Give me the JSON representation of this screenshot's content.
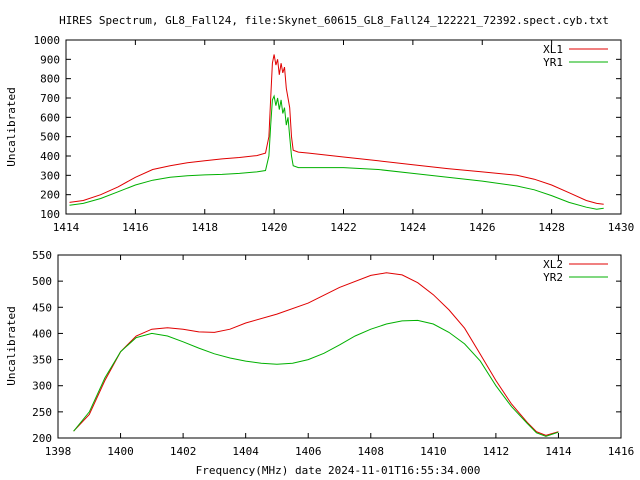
{
  "title": "HIRES Spectrum, GL8_Fall24, file:Skynet_60615_GL8_Fall24_122221_72392.spect.cyb.txt",
  "xlabel": "Frequency(MHz) date 2024-11-01T16:55:34.000",
  "colors": {
    "red": "#e00000",
    "green": "#00b000",
    "axis": "#000000"
  },
  "chart_data": [
    {
      "type": "line",
      "ylabel": "Uncalibrated",
      "xlim": [
        1414,
        1430
      ],
      "ylim": [
        100,
        1000
      ],
      "xticks": [
        1414,
        1416,
        1418,
        1420,
        1422,
        1424,
        1426,
        1428,
        1430
      ],
      "yticks": [
        100,
        200,
        300,
        400,
        500,
        600,
        700,
        800,
        900,
        1000
      ],
      "legend": "top-right",
      "series": [
        {
          "name": "XL1",
          "color": "#e00000",
          "points": [
            [
              1414.1,
              160
            ],
            [
              1414.5,
              170
            ],
            [
              1415,
              200
            ],
            [
              1415.5,
              240
            ],
            [
              1416,
              290
            ],
            [
              1416.5,
              330
            ],
            [
              1417,
              350
            ],
            [
              1417.5,
              365
            ],
            [
              1418,
              375
            ],
            [
              1418.5,
              385
            ],
            [
              1419,
              392
            ],
            [
              1419.5,
              402
            ],
            [
              1419.75,
              415
            ],
            [
              1419.85,
              500
            ],
            [
              1419.9,
              700
            ],
            [
              1419.95,
              880
            ],
            [
              1420.0,
              925
            ],
            [
              1420.05,
              870
            ],
            [
              1420.1,
              900
            ],
            [
              1420.15,
              820
            ],
            [
              1420.2,
              880
            ],
            [
              1420.25,
              830
            ],
            [
              1420.3,
              860
            ],
            [
              1420.35,
              750
            ],
            [
              1420.4,
              700
            ],
            [
              1420.45,
              650
            ],
            [
              1420.5,
              500
            ],
            [
              1420.55,
              430
            ],
            [
              1420.7,
              420
            ],
            [
              1421,
              415
            ],
            [
              1422,
              395
            ],
            [
              1423,
              375
            ],
            [
              1424,
              355
            ],
            [
              1425,
              335
            ],
            [
              1426,
              318
            ],
            [
              1427,
              300
            ],
            [
              1427.5,
              280
            ],
            [
              1428,
              250
            ],
            [
              1428.5,
              210
            ],
            [
              1429,
              170
            ],
            [
              1429.3,
              155
            ],
            [
              1429.5,
              150
            ]
          ]
        },
        {
          "name": "YR1",
          "color": "#00b000",
          "points": [
            [
              1414.1,
              145
            ],
            [
              1414.5,
              155
            ],
            [
              1415,
              180
            ],
            [
              1415.5,
              215
            ],
            [
              1416,
              250
            ],
            [
              1416.5,
              275
            ],
            [
              1417,
              290
            ],
            [
              1417.5,
              298
            ],
            [
              1418,
              302
            ],
            [
              1418.5,
              305
            ],
            [
              1419,
              310
            ],
            [
              1419.5,
              318
            ],
            [
              1419.75,
              325
            ],
            [
              1419.85,
              400
            ],
            [
              1419.9,
              560
            ],
            [
              1419.95,
              690
            ],
            [
              1420.0,
              710
            ],
            [
              1420.05,
              660
            ],
            [
              1420.1,
              700
            ],
            [
              1420.15,
              640
            ],
            [
              1420.2,
              690
            ],
            [
              1420.25,
              620
            ],
            [
              1420.3,
              650
            ],
            [
              1420.35,
              560
            ],
            [
              1420.4,
              600
            ],
            [
              1420.45,
              500
            ],
            [
              1420.5,
              400
            ],
            [
              1420.55,
              350
            ],
            [
              1420.7,
              340
            ],
            [
              1421,
              340
            ],
            [
              1422,
              340
            ],
            [
              1423,
              330
            ],
            [
              1424,
              310
            ],
            [
              1425,
              290
            ],
            [
              1426,
              270
            ],
            [
              1427,
              245
            ],
            [
              1427.5,
              225
            ],
            [
              1428,
              195
            ],
            [
              1428.5,
              160
            ],
            [
              1429,
              135
            ],
            [
              1429.3,
              125
            ],
            [
              1429.5,
              130
            ]
          ]
        }
      ]
    },
    {
      "type": "line",
      "ylabel": "Uncalibrated",
      "xlim": [
        1398,
        1416
      ],
      "ylim": [
        200,
        550
      ],
      "xticks": [
        1398,
        1400,
        1402,
        1404,
        1406,
        1408,
        1410,
        1412,
        1414,
        1416
      ],
      "yticks": [
        200,
        250,
        300,
        350,
        400,
        450,
        500,
        550
      ],
      "legend": "top-right",
      "series": [
        {
          "name": "XL2",
          "color": "#e00000",
          "points": [
            [
              1398.5,
              213
            ],
            [
              1399,
              245
            ],
            [
              1399.5,
              310
            ],
            [
              1400,
              365
            ],
            [
              1400.5,
              395
            ],
            [
              1401,
              408
            ],
            [
              1401.5,
              411
            ],
            [
              1402,
              408
            ],
            [
              1402.5,
              403
            ],
            [
              1403,
              402
            ],
            [
              1403.5,
              408
            ],
            [
              1404,
              420
            ],
            [
              1405,
              437
            ],
            [
              1406,
              458
            ],
            [
              1407,
              488
            ],
            [
              1408,
              511
            ],
            [
              1408.5,
              516
            ],
            [
              1409,
              512
            ],
            [
              1409.5,
              497
            ],
            [
              1410,
              474
            ],
            [
              1410.5,
              445
            ],
            [
              1411,
              410
            ],
            [
              1411.5,
              360
            ],
            [
              1412,
              310
            ],
            [
              1412.5,
              265
            ],
            [
              1413,
              230
            ],
            [
              1413.3,
              212
            ],
            [
              1413.6,
              205
            ],
            [
              1414,
              212
            ]
          ]
        },
        {
          "name": "YR2",
          "color": "#00b000",
          "points": [
            [
              1398.5,
              213
            ],
            [
              1399,
              250
            ],
            [
              1399.5,
              315
            ],
            [
              1400,
              365
            ],
            [
              1400.5,
              392
            ],
            [
              1401,
              400
            ],
            [
              1401.5,
              395
            ],
            [
              1402,
              384
            ],
            [
              1402.5,
              372
            ],
            [
              1403,
              361
            ],
            [
              1403.5,
              353
            ],
            [
              1404,
              347
            ],
            [
              1404.5,
              343
            ],
            [
              1405,
              341
            ],
            [
              1405.5,
              343
            ],
            [
              1406,
              350
            ],
            [
              1406.5,
              362
            ],
            [
              1407,
              378
            ],
            [
              1407.5,
              395
            ],
            [
              1408,
              408
            ],
            [
              1408.5,
              418
            ],
            [
              1409,
              424
            ],
            [
              1409.5,
              425
            ],
            [
              1410,
              418
            ],
            [
              1410.5,
              402
            ],
            [
              1411,
              380
            ],
            [
              1411.5,
              347
            ],
            [
              1412,
              300
            ],
            [
              1412.5,
              260
            ],
            [
              1413,
              228
            ],
            [
              1413.3,
              210
            ],
            [
              1413.6,
              203
            ],
            [
              1414,
              211
            ]
          ]
        }
      ]
    }
  ]
}
